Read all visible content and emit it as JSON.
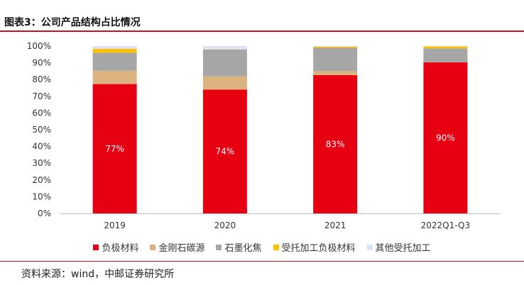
{
  "header": {
    "title": "图表3：公司产品结构占比情况"
  },
  "footer": {
    "source": "资料来源：wind，中邮证券研究所"
  },
  "colors": [
    "#e60012",
    "#dbb380",
    "#a6a6a6",
    "#ffc000",
    "#dce3f0"
  ],
  "chart_data": {
    "type": "bar",
    "stacked": true,
    "categories": [
      "2019",
      "2020",
      "2021",
      "2022Q1-Q3"
    ],
    "ylim": [
      0,
      100
    ],
    "yticks": [
      "0%",
      "10%",
      "20%",
      "30%",
      "40%",
      "50%",
      "60%",
      "70%",
      "80%",
      "90%",
      "100%"
    ],
    "series": [
      {
        "name": "负极材料",
        "values": [
          77.3,
          74.0,
          82.7,
          90.3
        ],
        "labels": [
          "77%",
          "74%",
          "83%",
          "90%"
        ]
      },
      {
        "name": "金刚石碳源",
        "values": [
          8.0,
          8.0,
          2.3,
          0.0
        ]
      },
      {
        "name": "石墨化焦",
        "values": [
          10.7,
          16.0,
          14.0,
          8.3
        ]
      },
      {
        "name": "受托加工负极材料",
        "values": [
          2.3,
          0.0,
          0.7,
          1.2
        ]
      },
      {
        "name": "其他受托加工",
        "values": [
          1.7,
          2.0,
          0.3,
          0.2
        ]
      }
    ],
    "legend_position": "bottom",
    "grid": false
  }
}
